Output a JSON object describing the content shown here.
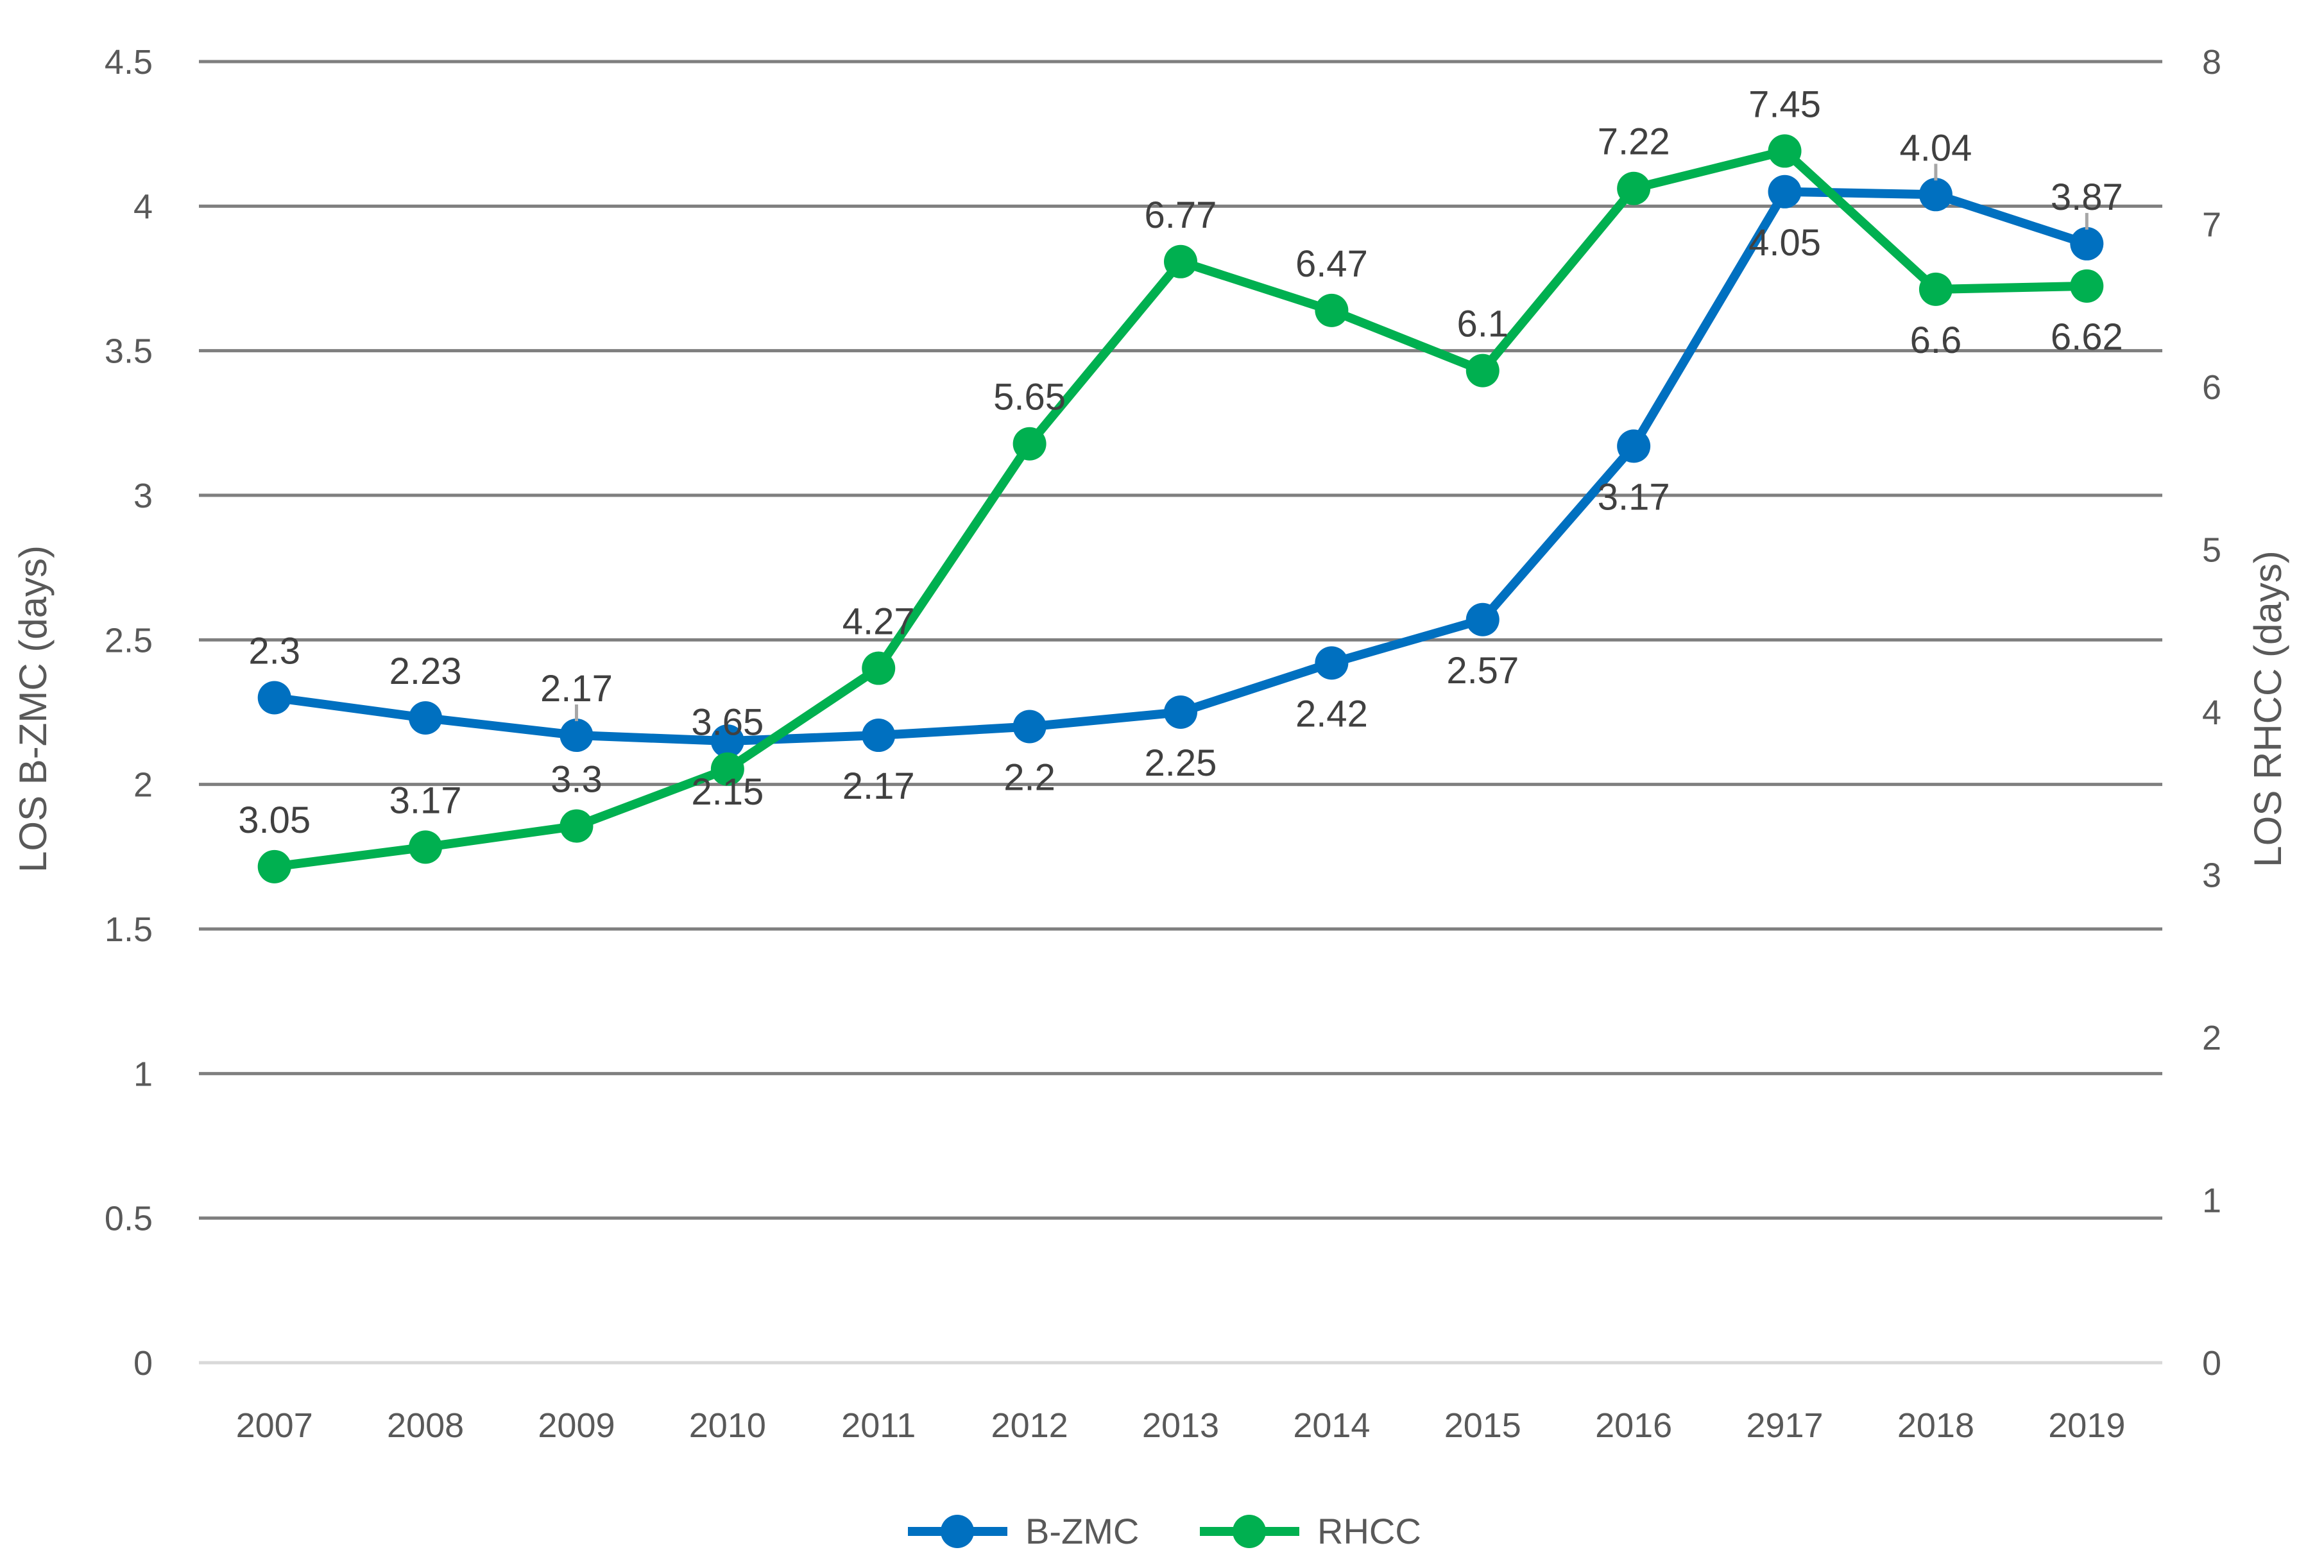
{
  "chart_data": {
    "type": "line",
    "categories": [
      "2007",
      "2008",
      "2009",
      "2010",
      "2011",
      "2012",
      "2013",
      "2014",
      "2015",
      "2016",
      "2917",
      "2018",
      "2019"
    ],
    "series": [
      {
        "name": "B-ZMC",
        "axis": "left",
        "color": "#0070c0",
        "values": [
          2.3,
          2.23,
          2.17,
          2.15,
          2.17,
          2.2,
          2.25,
          2.42,
          2.57,
          3.17,
          4.05,
          4.04,
          3.87
        ],
        "labels": [
          "2.3",
          "2.23",
          "2.17",
          "2.15",
          "2.17",
          "2.2",
          "2.25",
          "2.42",
          "2.57",
          "3.17",
          "4.05",
          "4.04",
          "3.87"
        ]
      },
      {
        "name": "RHCC",
        "axis": "right",
        "color": "#00b050",
        "values": [
          3.05,
          3.17,
          3.3,
          3.65,
          4.27,
          5.65,
          6.77,
          6.47,
          6.1,
          7.22,
          7.45,
          6.6,
          6.62
        ],
        "labels": [
          "3.05",
          "3.17",
          "3.3",
          "3.65",
          "4.27",
          "5.65",
          "6.77",
          "6.47",
          "6.1",
          "7.22",
          "7.45",
          "6.6",
          "6.62"
        ]
      }
    ],
    "y_left": {
      "title": "LOS B-ZMC (days)",
      "min": 0,
      "max": 4.5,
      "ticks": [
        "0",
        "0.5",
        "1",
        "1.5",
        "2",
        "2.5",
        "3",
        "3.5",
        "4",
        "4.5"
      ]
    },
    "y_right": {
      "title": "LOS RHCC (days)",
      "min": 0,
      "max": 8,
      "ticks": [
        "0",
        "1",
        "2",
        "3",
        "4",
        "5",
        "6",
        "7",
        "8"
      ]
    },
    "grid": true,
    "legend": "bottom-center"
  }
}
